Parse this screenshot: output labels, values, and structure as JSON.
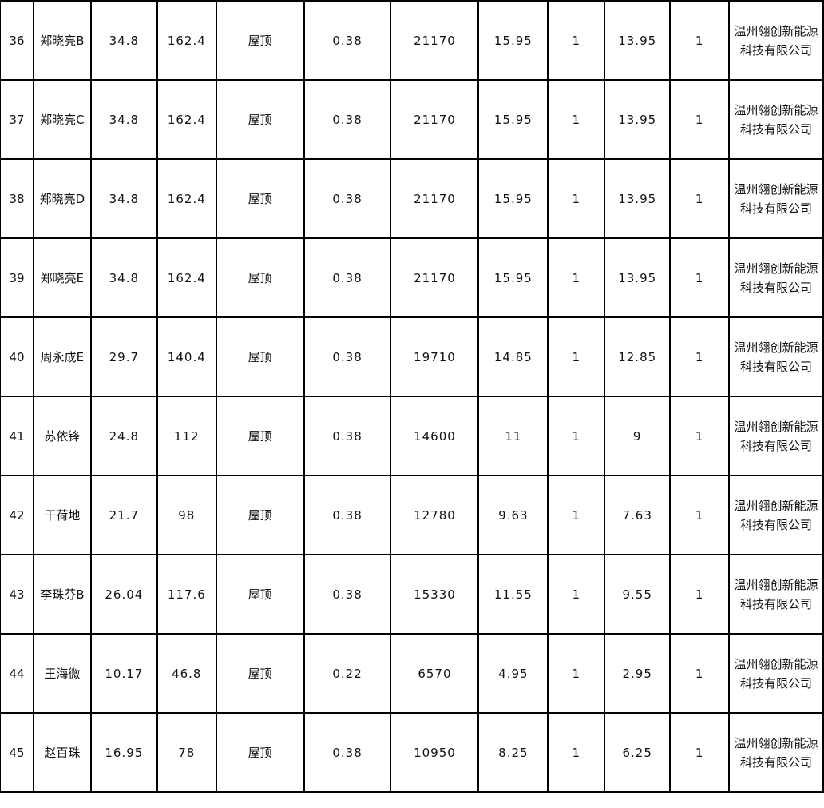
{
  "rows": [
    {
      "no": "36",
      "name": "郑晓亮B",
      "c3": "34.8",
      "c4": "162.4",
      "c5": "屋顶",
      "c6": "0.38",
      "c7": "21170",
      "c8": "15.95",
      "c9": "1",
      "c10": "13.95",
      "c11": "1",
      "c12": "温州翎创新能源科技有限公司"
    },
    {
      "no": "37",
      "name": "郑晓亮C",
      "c3": "34.8",
      "c4": "162.4",
      "c5": "屋顶",
      "c6": "0.38",
      "c7": "21170",
      "c8": "15.95",
      "c9": "1",
      "c10": "13.95",
      "c11": "1",
      "c12": "温州翎创新能源科技有限公司"
    },
    {
      "no": "38",
      "name": "郑晓亮D",
      "c3": "34.8",
      "c4": "162.4",
      "c5": "屋顶",
      "c6": "0.38",
      "c7": "21170",
      "c8": "15.95",
      "c9": "1",
      "c10": "13.95",
      "c11": "1",
      "c12": "温州翎创新能源科技有限公司"
    },
    {
      "no": "39",
      "name": "郑晓亮E",
      "c3": "34.8",
      "c4": "162.4",
      "c5": "屋顶",
      "c6": "0.38",
      "c7": "21170",
      "c8": "15.95",
      "c9": "1",
      "c10": "13.95",
      "c11": "1",
      "c12": "温州翎创新能源科技有限公司"
    },
    {
      "no": "40",
      "name": "周永成E",
      "c3": "29.7",
      "c4": "140.4",
      "c5": "屋顶",
      "c6": "0.38",
      "c7": "19710",
      "c8": "14.85",
      "c9": "1",
      "c10": "12.85",
      "c11": "1",
      "c12": "温州翎创新能源科技有限公司"
    },
    {
      "no": "41",
      "name": "苏依锋",
      "c3": "24.8",
      "c4": "112",
      "c5": "屋顶",
      "c6": "0.38",
      "c7": "14600",
      "c8": "11",
      "c9": "1",
      "c10": "9",
      "c11": "1",
      "c12": "温州翎创新能源科技有限公司"
    },
    {
      "no": "42",
      "name": "干荷地",
      "c3": "21.7",
      "c4": "98",
      "c5": "屋顶",
      "c6": "0.38",
      "c7": "12780",
      "c8": "9.63",
      "c9": "1",
      "c10": "7.63",
      "c11": "1",
      "c12": "温州翎创新能源科技有限公司"
    },
    {
      "no": "43",
      "name": "李珠芬B",
      "c3": "26.04",
      "c4": "117.6",
      "c5": "屋顶",
      "c6": "0.38",
      "c7": "15330",
      "c8": "11.55",
      "c9": "1",
      "c10": "9.55",
      "c11": "1",
      "c12": "温州翎创新能源科技有限公司"
    },
    {
      "no": "44",
      "name": "王海微",
      "c3": "10.17",
      "c4": "46.8",
      "c5": "屋顶",
      "c6": "0.22",
      "c7": "6570",
      "c8": "4.95",
      "c9": "1",
      "c10": "2.95",
      "c11": "1",
      "c12": "温州翎创新能源科技有限公司"
    },
    {
      "no": "45",
      "name": "赵百珠",
      "c3": "16.95",
      "c4": "78",
      "c5": "屋顶",
      "c6": "0.38",
      "c7": "10950",
      "c8": "8.25",
      "c9": "1",
      "c10": "6.25",
      "c11": "1",
      "c12": "温州翎创新能源科技有限公司"
    }
  ]
}
